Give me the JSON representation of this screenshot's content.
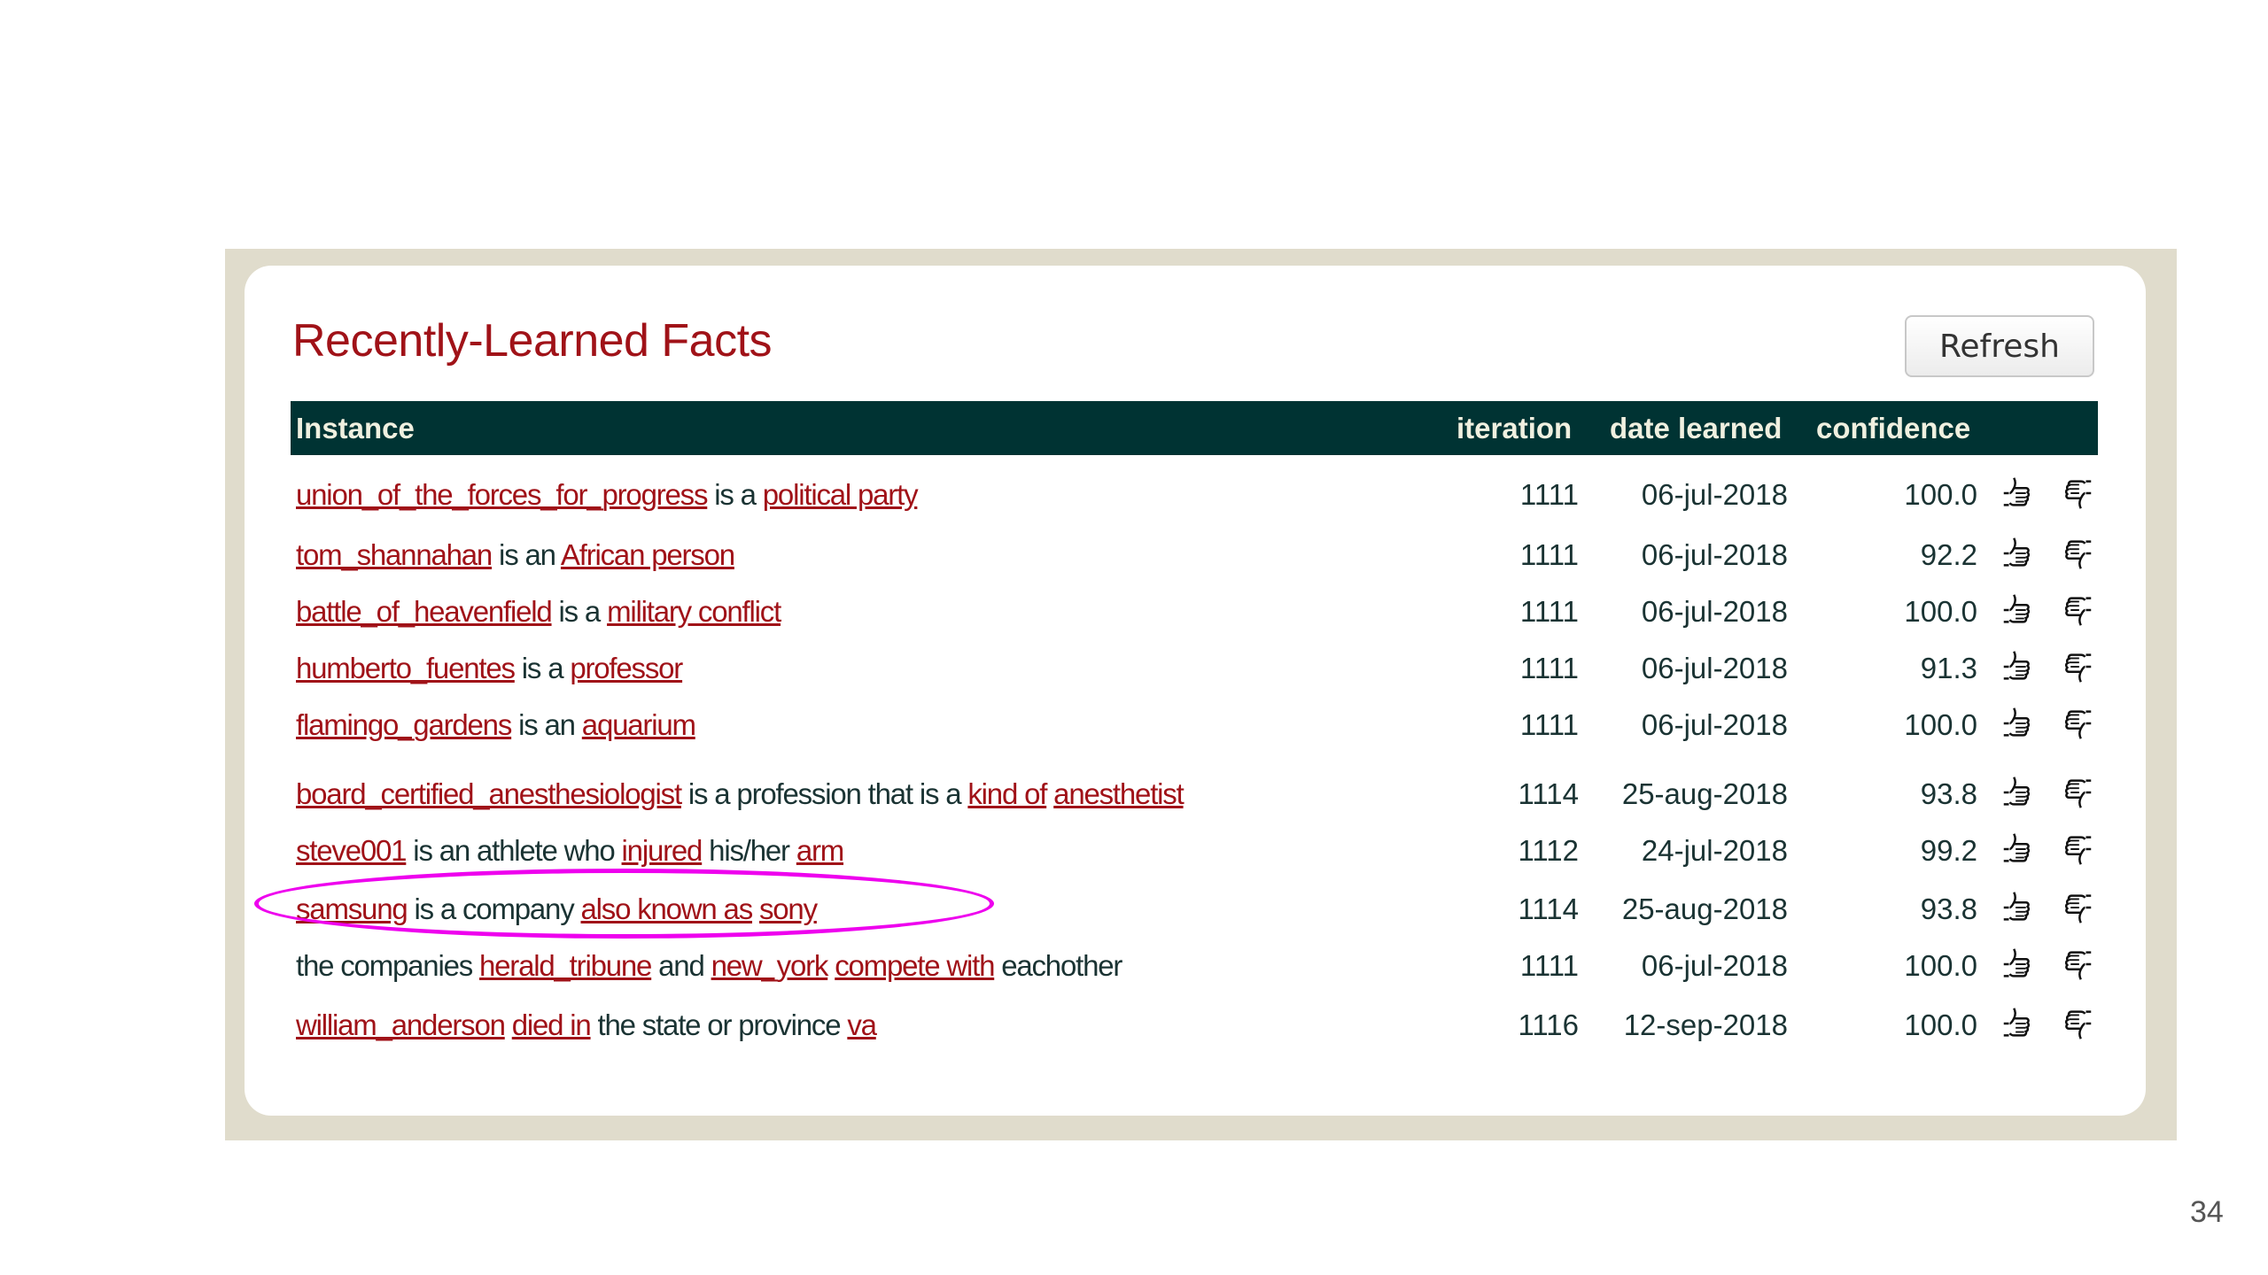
{
  "panel": {
    "title": "Recently-Learned Facts",
    "refresh_label": "Refresh"
  },
  "table": {
    "headers": {
      "instance": "Instance",
      "iteration": "iteration",
      "date": "date learned",
      "confidence": "confidence"
    },
    "rows": [
      {
        "parts": [
          {
            "t": "union_of_the_forces_for_progress",
            "link": true
          },
          {
            "t": " is a "
          },
          {
            "t": "political party",
            "link": true
          }
        ],
        "iteration": "1111",
        "date": "06-jul-2018",
        "confidence": "100.0"
      },
      {
        "parts": [
          {
            "t": "tom_shannahan",
            "link": true
          },
          {
            "t": " is an "
          },
          {
            "t": "African person",
            "link": true
          }
        ],
        "iteration": "1111",
        "date": "06-jul-2018",
        "confidence": "92.2"
      },
      {
        "parts": [
          {
            "t": "battle_of_heavenfield",
            "link": true
          },
          {
            "t": " is a "
          },
          {
            "t": "military conflict",
            "link": true
          }
        ],
        "iteration": "1111",
        "date": "06-jul-2018",
        "confidence": "100.0"
      },
      {
        "parts": [
          {
            "t": "humberto_fuentes",
            "link": true
          },
          {
            "t": " is a "
          },
          {
            "t": "professor",
            "link": true
          }
        ],
        "iteration": "1111",
        "date": "06-jul-2018",
        "confidence": "91.3"
      },
      {
        "parts": [
          {
            "t": "flamingo_gardens",
            "link": true
          },
          {
            "t": " is an "
          },
          {
            "t": "aquarium",
            "link": true
          }
        ],
        "iteration": "1111",
        "date": "06-jul-2018",
        "confidence": "100.0"
      },
      {
        "parts": [
          {
            "t": "board_certified_anesthesiologist",
            "link": true
          },
          {
            "t": " is a profession that is a "
          },
          {
            "t": "kind of",
            "link": true
          },
          {
            "t": " "
          },
          {
            "t": "anesthetist",
            "link": true
          }
        ],
        "iteration": "1114",
        "date": "25-aug-2018",
        "confidence": "93.8"
      },
      {
        "parts": [
          {
            "t": "steve001",
            "link": true
          },
          {
            "t": " is an athlete who "
          },
          {
            "t": "injured",
            "link": true
          },
          {
            "t": " his/her "
          },
          {
            "t": "arm",
            "link": true
          }
        ],
        "iteration": "1112",
        "date": "24-jul-2018",
        "confidence": "99.2"
      },
      {
        "parts": [
          {
            "t": "samsung",
            "link": true
          },
          {
            "t": " is a company "
          },
          {
            "t": "also known as",
            "link": true
          },
          {
            "t": " "
          },
          {
            "t": "sony",
            "link": true
          }
        ],
        "iteration": "1114",
        "date": "25-aug-2018",
        "confidence": "93.8"
      },
      {
        "parts": [
          {
            "t": "the companies "
          },
          {
            "t": "herald_tribune",
            "link": true
          },
          {
            "t": " and "
          },
          {
            "t": "new_york",
            "link": true
          },
          {
            "t": " "
          },
          {
            "t": "compete with",
            "link": true
          },
          {
            "t": " eachother"
          }
        ],
        "iteration": "1111",
        "date": "06-jul-2018",
        "confidence": "100.0"
      },
      {
        "parts": [
          {
            "t": "william_anderson",
            "link": true
          },
          {
            "t": " "
          },
          {
            "t": "died in",
            "link": true
          },
          {
            "t": " the state or province "
          },
          {
            "t": "va",
            "link": true
          }
        ],
        "iteration": "1116",
        "date": "12-sep-2018",
        "confidence": "100.0"
      }
    ]
  },
  "icons": {
    "up": "thumbs-up-icon",
    "down": "thumbs-down-icon"
  },
  "colors": {
    "link": "#a01218",
    "header_bg": "#003333",
    "highlight": "#ee00ee"
  },
  "page_number": "34"
}
